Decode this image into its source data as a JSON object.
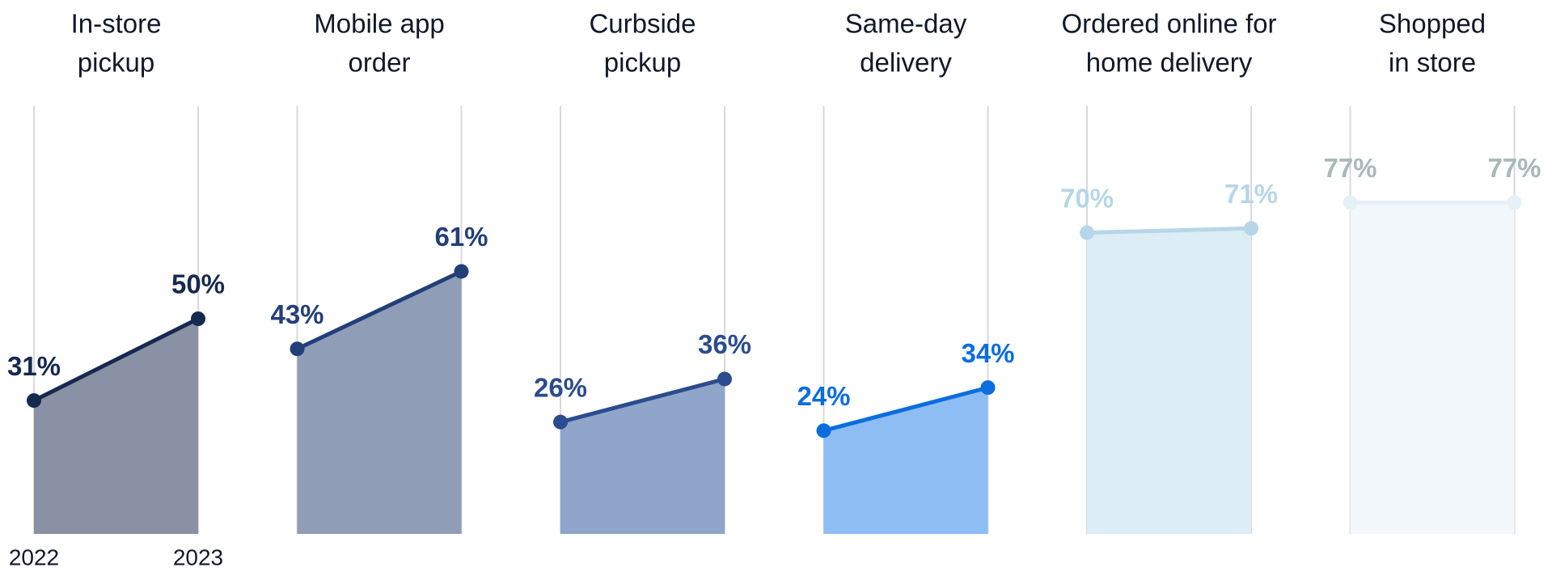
{
  "chart_data": {
    "type": "area",
    "years": [
      "2022",
      "2023"
    ],
    "ylim": [
      0,
      100
    ],
    "grid": true,
    "panels": [
      {
        "title_lines": [
          "In-store",
          "pickup"
        ],
        "values": [
          31,
          50
        ],
        "value_labels": [
          "31%",
          "50%"
        ],
        "line_color": "#16294f",
        "fill_color": "#8a91a4",
        "label_color": "#16294f"
      },
      {
        "title_lines": [
          "Mobile app",
          "order"
        ],
        "values": [
          43,
          61
        ],
        "value_labels": [
          "43%",
          "61%"
        ],
        "line_color": "#233f7a",
        "fill_color": "#8f9db6",
        "label_color": "#233f7a"
      },
      {
        "title_lines": [
          "Curbside",
          "pickup"
        ],
        "values": [
          26,
          36
        ],
        "value_labels": [
          "26%",
          "36%"
        ],
        "line_color": "#2b4c8f",
        "fill_color": "#8fa5c9",
        "label_color": "#2b4c8f"
      },
      {
        "title_lines": [
          "Same-day",
          "delivery"
        ],
        "values": [
          24,
          34
        ],
        "value_labels": [
          "24%",
          "34%"
        ],
        "line_color": "#0b6de0",
        "fill_color": "#8ebdf3",
        "label_color": "#0b6de0"
      },
      {
        "title_lines": [
          "Ordered online for",
          "home delivery"
        ],
        "values": [
          70,
          71
        ],
        "value_labels": [
          "70%",
          "71%"
        ],
        "line_color": "#b7d6e8",
        "fill_color": "#dcedf5",
        "label_color": "#b7d6e8"
      },
      {
        "title_lines": [
          "Shopped",
          "in store"
        ],
        "values": [
          77,
          77
        ],
        "value_labels": [
          "77%",
          "77%"
        ],
        "line_color": "#e6f0f7",
        "fill_color": "#f2f7fb",
        "label_color": "#a9b9b6"
      }
    ]
  }
}
